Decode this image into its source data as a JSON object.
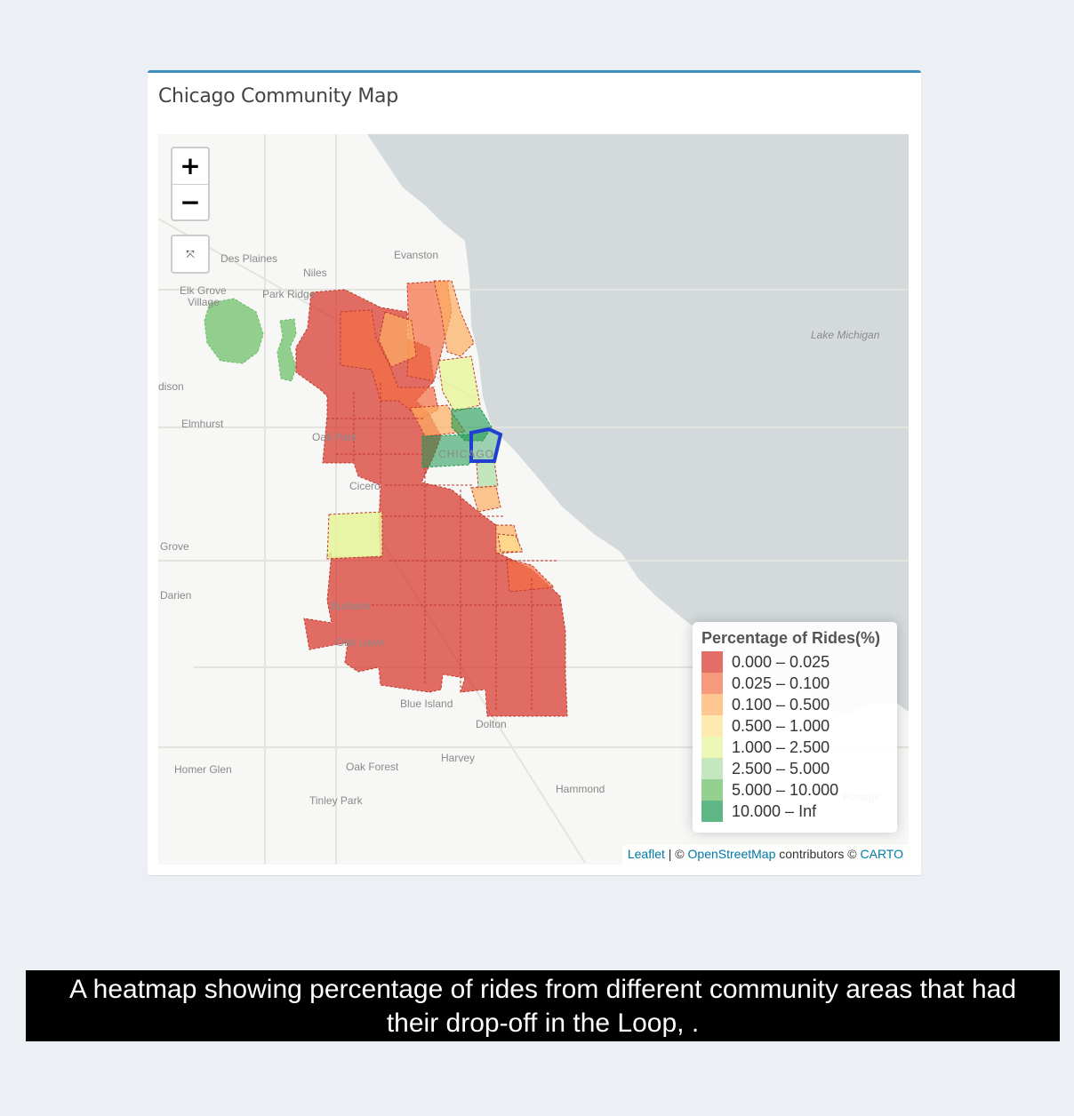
{
  "panel": {
    "title": "Chicago Community Map"
  },
  "map": {
    "zoom_in_label": "+",
    "zoom_out_label": "−",
    "reset_icon": "collapse-icon",
    "reset_glyph": "⤧",
    "places": [
      "Evanston",
      "Des Plaines",
      "Niles",
      "Elk Grove",
      "Village",
      "Park Ridge",
      "Elmhurst",
      "Oak Park",
      "Cicero",
      "Grove",
      "Darien",
      "Burbank",
      "Oak Lawn",
      "Blue Island",
      "Dolton",
      "Harvey",
      "Homer Glen",
      "Oak Forest",
      "Tinley Park",
      "Hammond",
      "Lake Michigan",
      "CHICAGO",
      "Portage",
      "dison"
    ],
    "highlight_area": "Loop",
    "legend": {
      "title": "Percentage of Rides(%)",
      "items": [
        {
          "label": "0.000 – 0.025",
          "color": "#d73027"
        },
        {
          "label": "0.025 – 0.100",
          "color": "#f46d43"
        },
        {
          "label": "0.100 – 0.500",
          "color": "#fdae61"
        },
        {
          "label": "0.500 – 1.000",
          "color": "#fee08b"
        },
        {
          "label": "1.000 – 2.500",
          "color": "#e6f598"
        },
        {
          "label": "2.500 – 5.000",
          "color": "#abdda4"
        },
        {
          "label": "5.000 – 10.000",
          "color": "#66bd63"
        },
        {
          "label": "10.000 – Inf",
          "color": "#1a9850"
        }
      ]
    },
    "attribution": {
      "leaflet": "Leaflet",
      "sep1": " | © ",
      "osm": "OpenStreetMap",
      "mid": " contributors © ",
      "carto": "CARTO"
    },
    "colors": {
      "water": "#d4dadc",
      "land": "#f7f7f5",
      "border": "#c0392b",
      "highlight": "#1f3fd1"
    }
  },
  "caption": {
    "line1": "A heatmap showing percentage of rides from different community areas that had",
    "line2": "their drop-off in the Loop, ."
  }
}
